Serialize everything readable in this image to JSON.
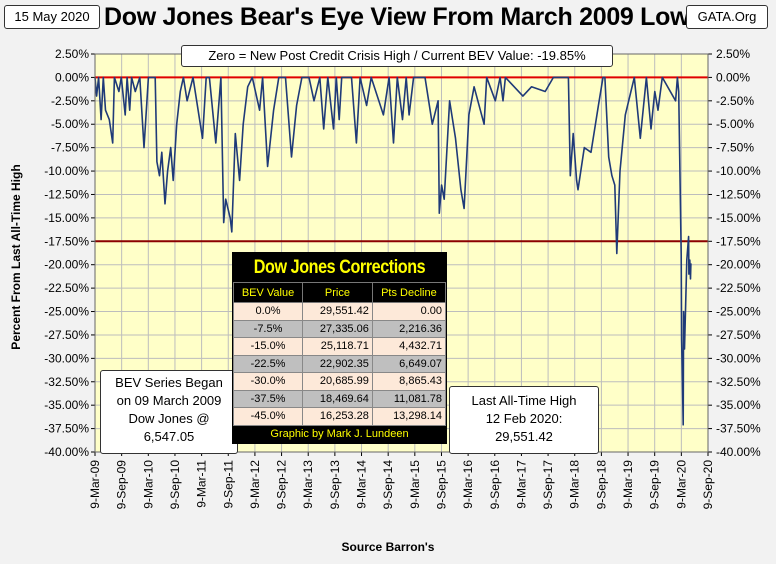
{
  "header": {
    "date": "15 May 2020",
    "title": "Dow Jones Bear's Eye View From March 2009 Low",
    "source_site": "GATA.Org",
    "subtitle": "Zero = New Post Credit Crisis High / Current BEV Value:  -19.85%"
  },
  "notes": {
    "left": [
      "BEV Series Began",
      "on 09 March 2009",
      "Dow Jones @",
      "6,547.05"
    ],
    "right": [
      "Last All-Time High",
      "12 Feb 2020:",
      "29,551.42"
    ]
  },
  "corrections_table": {
    "title": "Dow Jones Corrections",
    "headers": [
      "BEV Value",
      "Price",
      "Pts Decline"
    ],
    "rows": [
      [
        "0.0%",
        "29,551.42",
        "0.00"
      ],
      [
        "-7.5%",
        "27,335.06",
        "2,216.36"
      ],
      [
        "-15.0%",
        "25,118.71",
        "4,432.71"
      ],
      [
        "-22.5%",
        "22,902.35",
        "6,649.07"
      ],
      [
        "-30.0%",
        "20,685.99",
        "8,865.43"
      ],
      [
        "-37.5%",
        "18,469.64",
        "11,081.78"
      ],
      [
        "-45.0%",
        "16,253.28",
        "13,298.14"
      ]
    ],
    "footer": "Graphic by Mark J. Lundeen"
  },
  "chart_data": {
    "type": "line",
    "title": "Dow Jones Bear's Eye View From March 2009 Low",
    "ylabel": "Percent From Last All-Time High",
    "xlabel": "Source Barron's",
    "ylim": [
      -40,
      2.5
    ],
    "yticks": [
      "2.50%",
      "0.00%",
      "-2.50%",
      "-5.00%",
      "-7.50%",
      "-10.00%",
      "-12.50%",
      "-15.00%",
      "-17.50%",
      "-20.00%",
      "-22.50%",
      "-25.00%",
      "-27.50%",
      "-30.00%",
      "-32.50%",
      "-35.00%",
      "-37.50%",
      "-40.00%"
    ],
    "xticks": [
      "9-Mar-09",
      "9-Sep-09",
      "9-Mar-10",
      "9-Sep-10",
      "9-Mar-11",
      "9-Sep-11",
      "9-Mar-12",
      "9-Sep-12",
      "9-Mar-13",
      "9-Sep-13",
      "9-Mar-14",
      "9-Sep-14",
      "9-Mar-15",
      "9-Sep-15",
      "9-Mar-16",
      "9-Sep-16",
      "9-Mar-17",
      "9-Sep-17",
      "9-Mar-18",
      "9-Sep-18",
      "9-Mar-19",
      "9-Sep-19",
      "9-Mar-20",
      "9-Sep-20"
    ],
    "xrange": [
      "2009-03-09",
      "2020-09-09"
    ],
    "reference_lines": [
      0,
      -17.5
    ],
    "grid": true,
    "colors": {
      "plot_bg": "#ffffc8",
      "line": "#1f3a78",
      "ref_line": "#c00000",
      "grid": "#bdbdbd"
    },
    "series": [
      {
        "points": [
          [
            "2009-03-09",
            0
          ],
          [
            "2009-03-20",
            -2.0
          ],
          [
            "2009-04-03",
            0
          ],
          [
            "2009-04-20",
            -4.5
          ],
          [
            "2009-05-05",
            0
          ],
          [
            "2009-05-20",
            -3.5
          ],
          [
            "2009-06-15",
            -4.5
          ],
          [
            "2009-07-08",
            -7.0
          ],
          [
            "2009-07-20",
            0
          ],
          [
            "2009-08-20",
            -1.5
          ],
          [
            "2009-09-05",
            0
          ],
          [
            "2009-10-02",
            -4.0
          ],
          [
            "2009-10-15",
            0
          ],
          [
            "2009-11-02",
            -3.5
          ],
          [
            "2009-11-15",
            0
          ],
          [
            "2009-12-10",
            -1.5
          ],
          [
            "2010-01-10",
            0
          ],
          [
            "2010-02-08",
            -7.5
          ],
          [
            "2010-03-10",
            0
          ],
          [
            "2010-04-26",
            0
          ],
          [
            "2010-05-07",
            -9.0
          ],
          [
            "2010-05-25",
            -10.5
          ],
          [
            "2010-06-10",
            -8.0
          ],
          [
            "2010-07-02",
            -13.5
          ],
          [
            "2010-07-20",
            -10.0
          ],
          [
            "2010-08-10",
            -7.5
          ],
          [
            "2010-08-27",
            -11.0
          ],
          [
            "2010-09-20",
            -5.0
          ],
          [
            "2010-10-15",
            -1.5
          ],
          [
            "2010-11-05",
            0
          ],
          [
            "2010-11-30",
            -2.5
          ],
          [
            "2011-01-10",
            0
          ],
          [
            "2011-03-16",
            -6.5
          ],
          [
            "2011-04-10",
            0
          ],
          [
            "2011-05-02",
            0
          ],
          [
            "2011-06-15",
            -7.0
          ],
          [
            "2011-07-20",
            0
          ],
          [
            "2011-08-08",
            -15.5
          ],
          [
            "2011-08-22",
            -13.0
          ],
          [
            "2011-09-22",
            -15.0
          ],
          [
            "2011-10-03",
            -16.5
          ],
          [
            "2011-10-27",
            -6.0
          ],
          [
            "2011-11-25",
            -11.0
          ],
          [
            "2011-12-20",
            -5.0
          ],
          [
            "2012-01-20",
            -1.0
          ],
          [
            "2012-02-20",
            0
          ],
          [
            "2012-04-10",
            -3.5
          ],
          [
            "2012-05-01",
            0
          ],
          [
            "2012-06-04",
            -9.5
          ],
          [
            "2012-07-15",
            -3.5
          ],
          [
            "2012-08-20",
            0
          ],
          [
            "2012-10-05",
            0
          ],
          [
            "2012-11-15",
            -8.5
          ],
          [
            "2012-12-20",
            -3.0
          ],
          [
            "2013-01-25",
            0
          ],
          [
            "2013-03-15",
            0
          ],
          [
            "2013-04-18",
            -2.5
          ],
          [
            "2013-05-28",
            0
          ],
          [
            "2013-06-24",
            -5.5
          ],
          [
            "2013-07-22",
            0
          ],
          [
            "2013-08-30",
            -5.5
          ],
          [
            "2013-09-18",
            0
          ],
          [
            "2013-10-08",
            -4.5
          ],
          [
            "2013-10-25",
            0
          ],
          [
            "2013-12-31",
            0
          ],
          [
            "2014-02-03",
            -7.0
          ],
          [
            "2014-02-28",
            0
          ],
          [
            "2014-04-14",
            -3.0
          ],
          [
            "2014-05-15",
            0
          ],
          [
            "2014-08-07",
            -4.0
          ],
          [
            "2014-09-15",
            0
          ],
          [
            "2014-10-15",
            -7.0
          ],
          [
            "2014-11-10",
            0
          ],
          [
            "2014-12-16",
            -4.5
          ],
          [
            "2015-01-10",
            0
          ],
          [
            "2015-01-30",
            -4.0
          ],
          [
            "2015-03-02",
            0
          ],
          [
            "2015-05-19",
            0
          ],
          [
            "2015-07-08",
            -5.0
          ],
          [
            "2015-08-17",
            -2.5
          ],
          [
            "2015-08-25",
            -14.5
          ],
          [
            "2015-09-10",
            -11.5
          ],
          [
            "2015-09-28",
            -13.0
          ],
          [
            "2015-11-04",
            -2.5
          ],
          [
            "2015-12-14",
            -6.5
          ],
          [
            "2016-01-20",
            -12.0
          ],
          [
            "2016-02-11",
            -14.0
          ],
          [
            "2016-03-15",
            -4.0
          ],
          [
            "2016-04-20",
            -1.0
          ],
          [
            "2016-06-27",
            -5.0
          ],
          [
            "2016-07-15",
            0
          ],
          [
            "2016-09-12",
            -2.5
          ],
          [
            "2016-10-15",
            0
          ],
          [
            "2016-11-04",
            -2.5
          ],
          [
            "2016-11-20",
            0
          ],
          [
            "2017-03-20",
            -2.0
          ],
          [
            "2017-05-18",
            -1.0
          ],
          [
            "2017-08-20",
            -1.5
          ],
          [
            "2017-10-15",
            0
          ],
          [
            "2018-01-26",
            0
          ],
          [
            "2018-02-08",
            -10.5
          ],
          [
            "2018-02-28",
            -6.0
          ],
          [
            "2018-03-23",
            -11.0
          ],
          [
            "2018-04-02",
            -12.0
          ],
          [
            "2018-05-15",
            -7.5
          ],
          [
            "2018-06-30",
            -8.0
          ],
          [
            "2018-08-20",
            -3.0
          ],
          [
            "2018-09-20",
            0
          ],
          [
            "2018-10-03",
            0
          ],
          [
            "2018-10-29",
            -8.5
          ],
          [
            "2018-11-20",
            -10.5
          ],
          [
            "2018-12-10",
            -11.5
          ],
          [
            "2018-12-24",
            -18.8
          ],
          [
            "2019-01-15",
            -10.0
          ],
          [
            "2019-02-20",
            -4.0
          ],
          [
            "2019-04-23",
            0
          ],
          [
            "2019-06-03",
            -6.5
          ],
          [
            "2019-07-15",
            0
          ],
          [
            "2019-08-15",
            -5.5
          ],
          [
            "2019-09-10",
            -1.5
          ],
          [
            "2019-10-02",
            -3.5
          ],
          [
            "2019-11-01",
            0
          ],
          [
            "2020-01-31",
            -2.5
          ],
          [
            "2020-02-12",
            0
          ],
          [
            "2020-02-21",
            -1.5
          ],
          [
            "2020-03-09",
            -19.0
          ],
          [
            "2020-03-12",
            -28.0
          ],
          [
            "2020-03-16",
            -31.0
          ],
          [
            "2020-03-23",
            -37.1
          ],
          [
            "2020-03-26",
            -25.0
          ],
          [
            "2020-04-01",
            -29.0
          ],
          [
            "2020-04-17",
            -19.5
          ],
          [
            "2020-04-29",
            -17.0
          ],
          [
            "2020-05-01",
            -21.0
          ],
          [
            "2020-05-07",
            -19.5
          ],
          [
            "2020-05-12",
            -21.5
          ],
          [
            "2020-05-15",
            -19.85
          ]
        ]
      }
    ]
  }
}
